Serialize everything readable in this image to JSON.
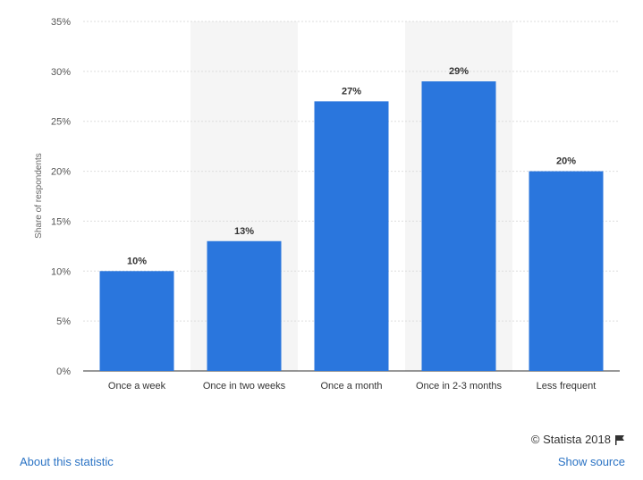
{
  "chart_data": {
    "type": "bar",
    "categories": [
      "Once a week",
      "Once in two weeks",
      "Once a month",
      "Once in 2-3 months",
      "Less frequent"
    ],
    "values": [
      10,
      13,
      27,
      29,
      20
    ],
    "data_labels": [
      "10%",
      "13%",
      "27%",
      "29%",
      "20%"
    ],
    "ylabel": "Share of respondents",
    "ylim": [
      0,
      35
    ],
    "yticks": [
      0,
      5,
      10,
      15,
      20,
      25,
      30,
      35
    ],
    "ytick_labels": [
      "0%",
      "5%",
      "10%",
      "15%",
      "20%",
      "25%",
      "30%",
      "35%"
    ],
    "grid": true,
    "bar_color": "#2a76dd",
    "band_color": "#f5f5f5"
  },
  "footer": {
    "about_label": "About this statistic",
    "copyright": "© Statista 2018",
    "show_source_label": "Show source",
    "flag_icon": "flag-icon"
  },
  "colors": {
    "link": "#2b73c4"
  }
}
